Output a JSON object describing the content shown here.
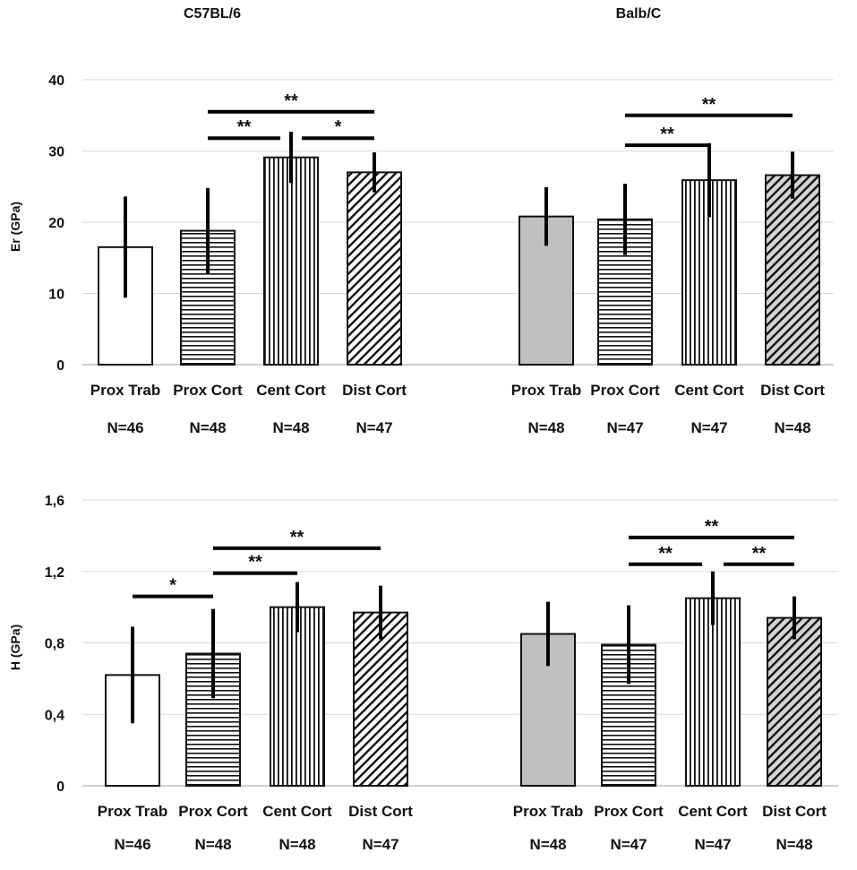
{
  "panel_titles": [
    "C57BL/6",
    "Balb/C"
  ],
  "colors": {
    "background": "#ffffff",
    "gridline": "#d9d9d9",
    "axis": "#bfbfbf",
    "bar_stroke": "#111111",
    "pattern_line": "#111111",
    "error_bar": "#000000",
    "fill_white": "#ffffff",
    "fill_gray": "#c0c0c0",
    "fill_diag_gray": "#d4d4d4"
  },
  "chart_data": [
    {
      "type": "bar",
      "id": "er",
      "ylabel": "Er (GPa)",
      "ylim": [
        0,
        40
      ],
      "yticks": [
        0,
        10,
        20,
        30,
        40
      ],
      "ytick_labels": [
        "0",
        "10",
        "20",
        "30",
        "40"
      ],
      "grid": true,
      "groups": [
        {
          "title": "C57BL/6",
          "bars": [
            {
              "label": "Prox Trab",
              "n": "N=46",
              "value": 16.5,
              "err": 7.1,
              "pattern": "white"
            },
            {
              "label": "Prox Cort",
              "n": "N=48",
              "value": 18.8,
              "err": 6.0,
              "pattern": "horizontal"
            },
            {
              "label": "Cent Cort",
              "n": "N=48",
              "value": 29.1,
              "err": 3.6,
              "pattern": "vertical"
            },
            {
              "label": "Dist Cort",
              "n": "N=47",
              "value": 27.0,
              "err": 2.8,
              "pattern": "diagonal"
            }
          ],
          "significance": [
            {
              "from": 1,
              "to": 3,
              "y": 35.5,
              "label": "**"
            },
            {
              "from": 1,
              "to": 2,
              "y": 31.8,
              "label": "**"
            },
            {
              "from": 2,
              "to": 3,
              "y": 31.8,
              "label": "*"
            }
          ]
        },
        {
          "title": "Balb/C",
          "bars": [
            {
              "label": "Prox Trab",
              "n": "N=48",
              "value": 20.8,
              "err": 4.1,
              "pattern": "gray"
            },
            {
              "label": "Prox Cort",
              "n": "N=47",
              "value": 20.4,
              "err": 5.0,
              "pattern": "horizontal"
            },
            {
              "label": "Cent Cort",
              "n": "N=47",
              "value": 25.9,
              "err": 5.2,
              "pattern": "vertical"
            },
            {
              "label": "Dist Cort",
              "n": "N=48",
              "value": 26.6,
              "err": 3.3,
              "pattern": "diagonal-gray"
            }
          ],
          "significance": [
            {
              "from": 1,
              "to": 3,
              "y": 35.0,
              "label": "**"
            },
            {
              "from": 1,
              "to": 2,
              "y": 30.8,
              "label": "**"
            }
          ]
        }
      ]
    },
    {
      "type": "bar",
      "id": "h",
      "ylabel": "H (GPa)",
      "ylim": [
        0,
        1.6
      ],
      "yticks": [
        0,
        0.4,
        0.8,
        1.2,
        1.6
      ],
      "ytick_labels": [
        "0",
        "0,4",
        "0,8",
        "1,2",
        "1,6"
      ],
      "grid": true,
      "groups": [
        {
          "title": "",
          "bars": [
            {
              "label": "Prox Trab",
              "n": "N=46",
              "value": 0.62,
              "err": 0.27,
              "pattern": "white"
            },
            {
              "label": "Prox Cort",
              "n": "N=48",
              "value": 0.74,
              "err": 0.25,
              "pattern": "horizontal"
            },
            {
              "label": "Cent Cort",
              "n": "N=48",
              "value": 1.0,
              "err": 0.14,
              "pattern": "vertical"
            },
            {
              "label": "Dist Cort",
              "n": "N=47",
              "value": 0.97,
              "err": 0.15,
              "pattern": "diagonal"
            }
          ],
          "significance": [
            {
              "from": 1,
              "to": 3,
              "y": 1.33,
              "label": "**"
            },
            {
              "from": 1,
              "to": 2,
              "y": 1.19,
              "label": "**"
            },
            {
              "from": 0,
              "to": 1,
              "y": 1.06,
              "label": "*"
            }
          ]
        },
        {
          "title": "",
          "bars": [
            {
              "label": "Prox Trab",
              "n": "N=48",
              "value": 0.85,
              "err": 0.18,
              "pattern": "gray"
            },
            {
              "label": "Prox Cort",
              "n": "N=47",
              "value": 0.79,
              "err": 0.22,
              "pattern": "horizontal"
            },
            {
              "label": "Cent Cort",
              "n": "N=47",
              "value": 1.05,
              "err": 0.15,
              "pattern": "vertical"
            },
            {
              "label": "Dist Cort",
              "n": "N=48",
              "value": 0.94,
              "err": 0.12,
              "pattern": "diagonal-gray"
            }
          ],
          "significance": [
            {
              "from": 1,
              "to": 3,
              "y": 1.39,
              "label": "**"
            },
            {
              "from": 1,
              "to": 2,
              "y": 1.24,
              "label": "**"
            },
            {
              "from": 2,
              "to": 3,
              "y": 1.24,
              "label": "**"
            }
          ]
        }
      ]
    }
  ]
}
